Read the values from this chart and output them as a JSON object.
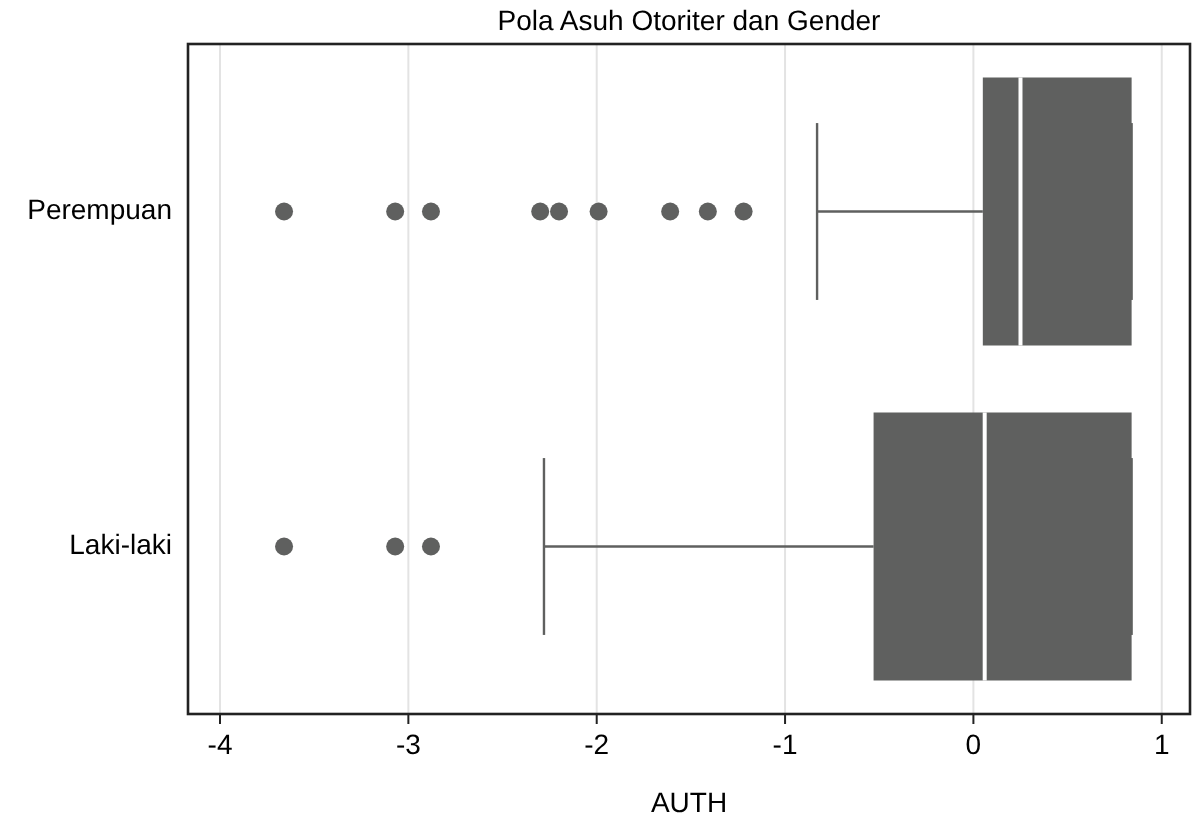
{
  "chart_data": {
    "type": "box",
    "orientation": "horizontal",
    "title": "Pola Asuh Otoriter dan Gender",
    "xlabel": "AUTH",
    "categories": [
      "Perempuan",
      "Laki-laki"
    ],
    "color": "#5f605f",
    "xlim": [
      -4.17,
      1.15
    ],
    "xticks": [
      -4,
      -3,
      -2,
      -1,
      0,
      1
    ],
    "grid": "x",
    "boxes": [
      {
        "low": -0.83,
        "q1": 0.05,
        "median": 0.25,
        "q3": 0.84,
        "high": 0.84,
        "outliers": [
          -3.66,
          -3.07,
          -2.88,
          -2.3,
          -2.2,
          -1.99,
          -1.61,
          -1.41,
          -1.22
        ]
      },
      {
        "low": -2.28,
        "q1": -0.53,
        "median": 0.06,
        "q3": 0.84,
        "high": 0.84,
        "outliers": [
          -3.66,
          -3.07,
          -2.88
        ]
      }
    ]
  }
}
